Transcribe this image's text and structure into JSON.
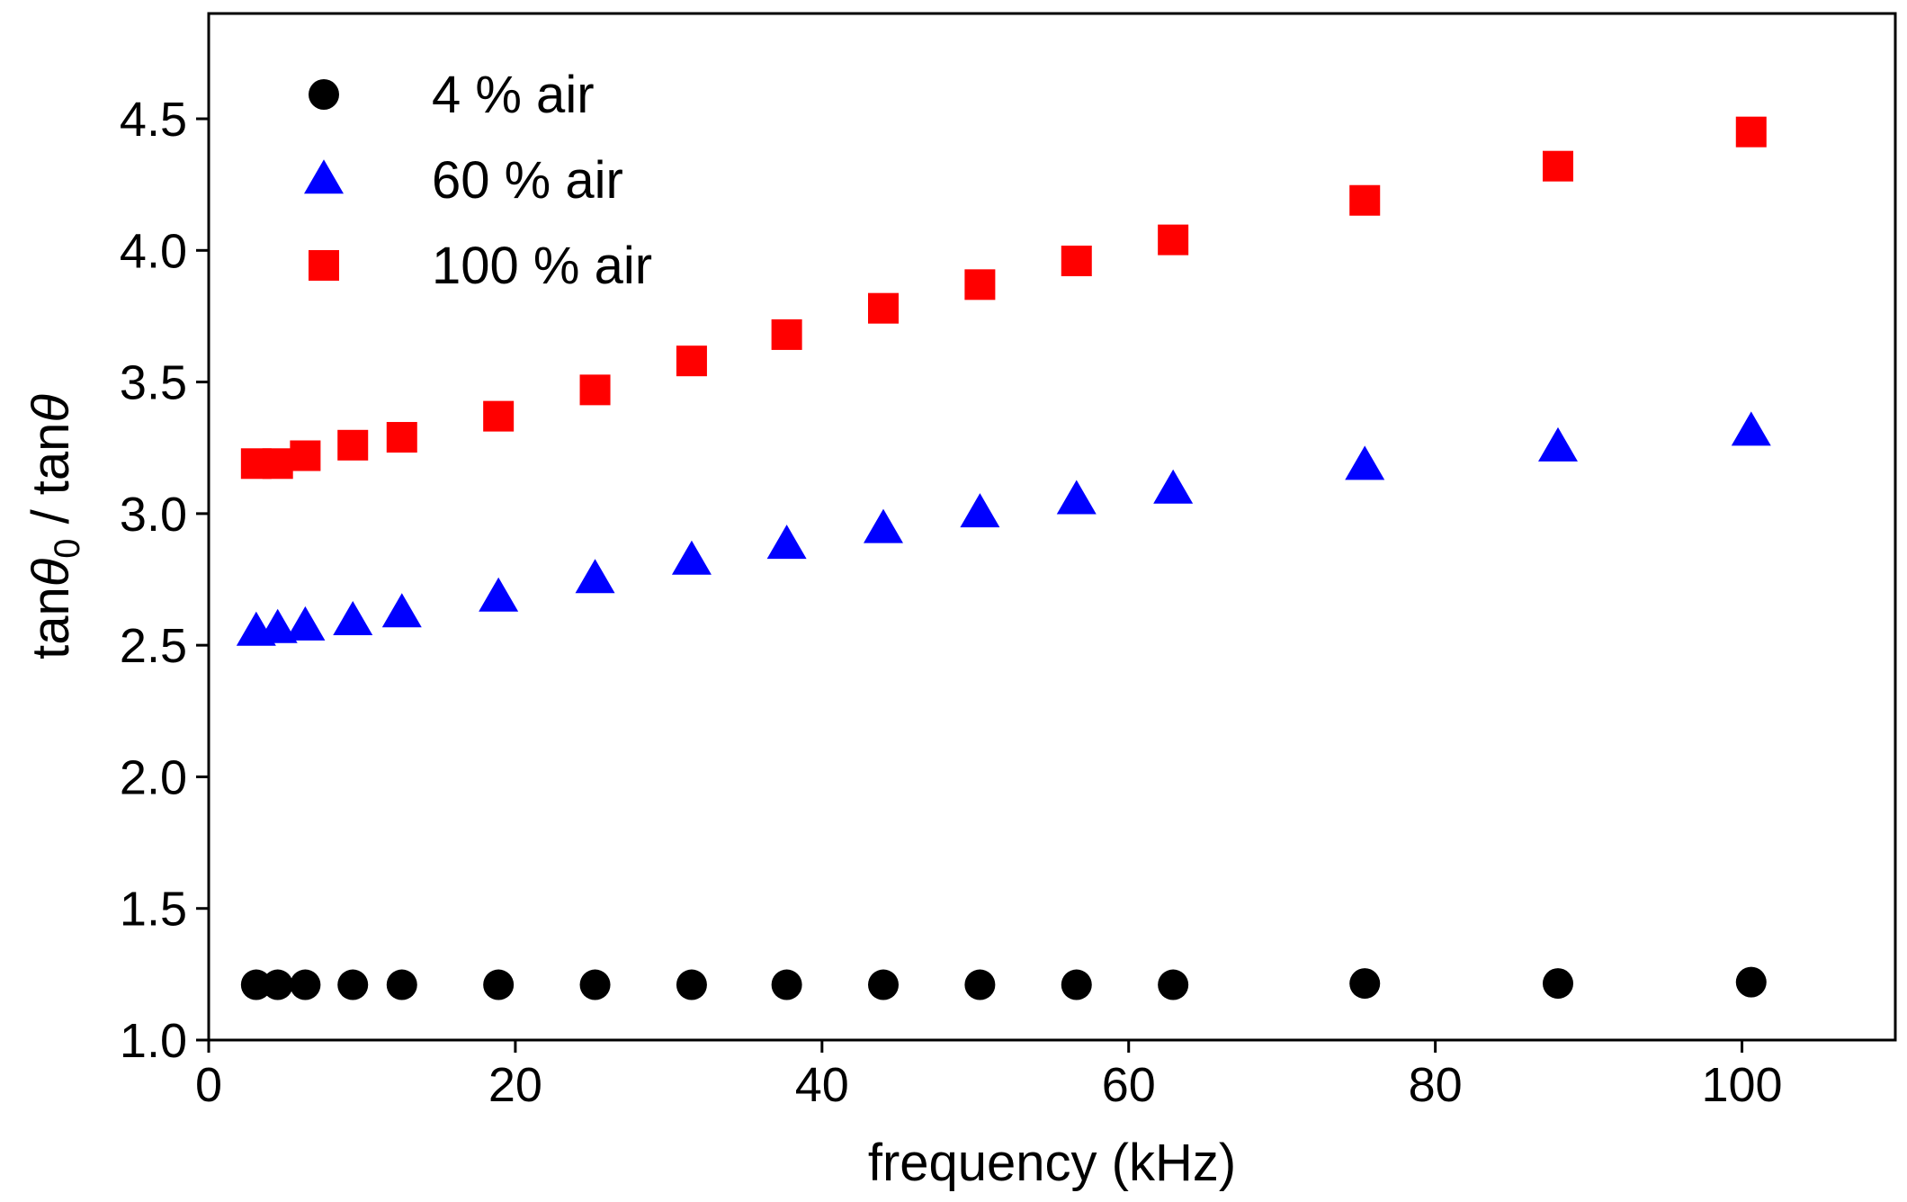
{
  "chart_data": {
    "type": "scatter",
    "title": "",
    "xlabel": "frequency (kHz)",
    "ylabel_parts": [
      "tan",
      "θ",
      "0",
      " / tan",
      "θ"
    ],
    "xlim": [
      0,
      110
    ],
    "ylim": [
      1.0,
      4.9
    ],
    "xticks": [
      0,
      20,
      40,
      60,
      80,
      100
    ],
    "xtick_labels": [
      "0",
      "20",
      "40",
      "60",
      "80",
      "100"
    ],
    "yticks": [
      1.0,
      1.5,
      2.0,
      2.5,
      3.0,
      3.5,
      4.0,
      4.5
    ],
    "ytick_labels": [
      "1.0",
      "1.5",
      "2.0",
      "2.5",
      "3.0",
      "3.5",
      "4.0",
      "4.5"
    ],
    "grid": false,
    "legend_position": "top-left",
    "series": [
      {
        "name": "4 % air",
        "marker": "circle",
        "color": "#000000",
        "x": [
          3.1,
          4.5,
          6.3,
          9.4,
          12.6,
          18.9,
          25.2,
          31.5,
          37.7,
          44.0,
          50.3,
          56.6,
          62.9,
          75.4,
          88.0,
          100.6
        ],
        "y": [
          1.21,
          1.21,
          1.21,
          1.21,
          1.21,
          1.21,
          1.21,
          1.21,
          1.21,
          1.21,
          1.21,
          1.21,
          1.21,
          1.215,
          1.215,
          1.22
        ]
      },
      {
        "name": "60 % air",
        "marker": "triangle",
        "color": "#0000ff",
        "x": [
          3.1,
          4.5,
          6.3,
          9.4,
          12.6,
          18.9,
          25.2,
          31.5,
          37.7,
          44.0,
          50.3,
          56.6,
          62.9,
          75.4,
          88.0,
          100.6
        ],
        "y": [
          2.55,
          2.56,
          2.57,
          2.59,
          2.62,
          2.68,
          2.75,
          2.82,
          2.88,
          2.94,
          3.0,
          3.05,
          3.09,
          3.18,
          3.25,
          3.31
        ]
      },
      {
        "name": "100 % air",
        "marker": "square",
        "color": "#ff0000",
        "x": [
          3.1,
          4.5,
          6.3,
          9.4,
          12.6,
          18.9,
          25.2,
          31.5,
          37.7,
          44.0,
          50.3,
          56.6,
          62.9,
          75.4,
          88.0,
          100.6
        ],
        "y": [
          3.19,
          3.19,
          3.22,
          3.26,
          3.29,
          3.37,
          3.47,
          3.58,
          3.68,
          3.78,
          3.87,
          3.96,
          4.04,
          4.19,
          4.32,
          4.45
        ]
      }
    ]
  }
}
